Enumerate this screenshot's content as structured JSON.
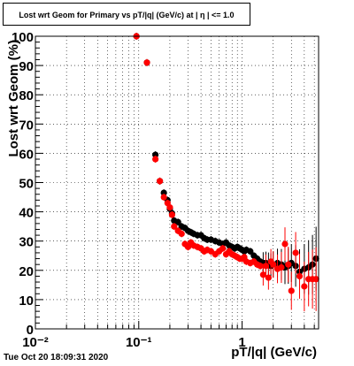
{
  "title": "Lost wrt Geom for Primary vs pT/|q| (GeV/c) at | η | <= 1.0",
  "timestamp": "Tue Oct 20 18:09:31 2020",
  "chart_data": {
    "type": "scatter",
    "title": "Lost wrt Geom for Primary vs pT/|q| (GeV/c) at | η | <= 1.0",
    "xlabel": "pT/|q| (GeV/c)",
    "ylabel": "Lost wrt Geom (%)",
    "xscale": "log",
    "xlim": [
      0.01,
      5.5
    ],
    "ylim": [
      0,
      100
    ],
    "grid": true,
    "x_ticks": [
      {
        "value": 0.01,
        "label": "10⁻²"
      },
      {
        "value": 0.1,
        "label": "10⁻¹"
      },
      {
        "value": 1,
        "label": "1"
      }
    ],
    "y_ticks": [
      0,
      10,
      20,
      30,
      40,
      50,
      60,
      70,
      80,
      90,
      100
    ],
    "series": [
      {
        "color": "#000000",
        "points": [
          [
            0.095,
            100
          ],
          [
            0.12,
            91
          ],
          [
            0.145,
            59.5
          ],
          [
            0.16,
            50.5
          ],
          [
            0.175,
            46.5
          ],
          [
            0.19,
            44
          ],
          [
            0.2,
            41
          ],
          [
            0.21,
            39.5
          ],
          [
            0.22,
            37
          ],
          [
            0.24,
            36.5
          ],
          [
            0.26,
            35
          ],
          [
            0.28,
            34.5
          ],
          [
            0.3,
            33.5
          ],
          [
            0.32,
            33
          ],
          [
            0.34,
            32.5
          ],
          [
            0.37,
            32
          ],
          [
            0.4,
            32
          ],
          [
            0.43,
            31
          ],
          [
            0.46,
            30.5
          ],
          [
            0.5,
            30.5
          ],
          [
            0.55,
            30
          ],
          [
            0.6,
            29.5
          ],
          [
            0.65,
            29
          ],
          [
            0.7,
            29.5
          ],
          [
            0.75,
            28.5
          ],
          [
            0.8,
            28
          ],
          [
            0.85,
            27.5
          ],
          [
            0.9,
            28
          ],
          [
            0.95,
            27.5
          ],
          [
            1.0,
            27
          ],
          [
            1.05,
            26.5
          ],
          [
            1.1,
            27
          ],
          [
            1.2,
            26.5
          ],
          [
            1.3,
            25
          ],
          [
            1.4,
            24
          ],
          [
            1.5,
            23
          ],
          [
            1.6,
            22.5
          ],
          [
            1.7,
            22.5
          ],
          [
            1.8,
            22
          ],
          [
            1.9,
            21.5
          ],
          [
            2.0,
            22
          ],
          [
            2.2,
            22.5
          ],
          [
            2.4,
            22
          ],
          [
            2.6,
            21
          ],
          [
            2.8,
            21.5
          ],
          [
            3.0,
            22.5
          ],
          [
            3.3,
            21.5
          ],
          [
            3.6,
            19.5
          ],
          [
            4.0,
            20.5
          ],
          [
            4.4,
            21
          ],
          [
            4.8,
            22
          ],
          [
            5.2,
            24
          ]
        ]
      },
      {
        "color": "#ff0000",
        "points": [
          [
            0.095,
            100
          ],
          [
            0.12,
            91
          ],
          [
            0.145,
            58
          ],
          [
            0.16,
            50.5
          ],
          [
            0.175,
            45
          ],
          [
            0.19,
            43
          ],
          [
            0.2,
            41.5
          ],
          [
            0.21,
            39
          ],
          [
            0.22,
            35
          ],
          [
            0.24,
            33.5
          ],
          [
            0.26,
            32.5
          ],
          [
            0.28,
            29
          ],
          [
            0.3,
            28
          ],
          [
            0.32,
            29.5
          ],
          [
            0.34,
            28.5
          ],
          [
            0.37,
            28
          ],
          [
            0.4,
            27.5
          ],
          [
            0.43,
            26.5
          ],
          [
            0.46,
            27
          ],
          [
            0.5,
            26.5
          ],
          [
            0.55,
            25.5
          ],
          [
            0.6,
            26.5
          ],
          [
            0.65,
            27.5
          ],
          [
            0.7,
            25.5
          ],
          [
            0.75,
            26.5
          ],
          [
            0.8,
            25.5
          ],
          [
            0.85,
            25
          ],
          [
            0.9,
            24.5
          ],
          [
            0.95,
            24
          ],
          [
            1.0,
            24
          ],
          [
            1.05,
            24.5
          ],
          [
            1.1,
            23
          ],
          [
            1.2,
            22.5
          ],
          [
            1.3,
            23
          ],
          [
            1.4,
            22
          ],
          [
            1.5,
            21.5
          ],
          [
            1.6,
            18.5
          ],
          [
            1.7,
            21.5
          ],
          [
            1.8,
            17.5
          ],
          [
            1.9,
            23
          ],
          [
            2.0,
            22
          ],
          [
            2.2,
            20.5
          ],
          [
            2.4,
            21
          ],
          [
            2.6,
            29
          ],
          [
            2.8,
            22
          ],
          [
            3.0,
            13
          ],
          [
            3.3,
            26
          ],
          [
            3.6,
            18
          ],
          [
            4.0,
            14.5
          ],
          [
            4.4,
            17
          ],
          [
            4.8,
            17
          ],
          [
            5.2,
            17
          ]
        ]
      }
    ]
  }
}
